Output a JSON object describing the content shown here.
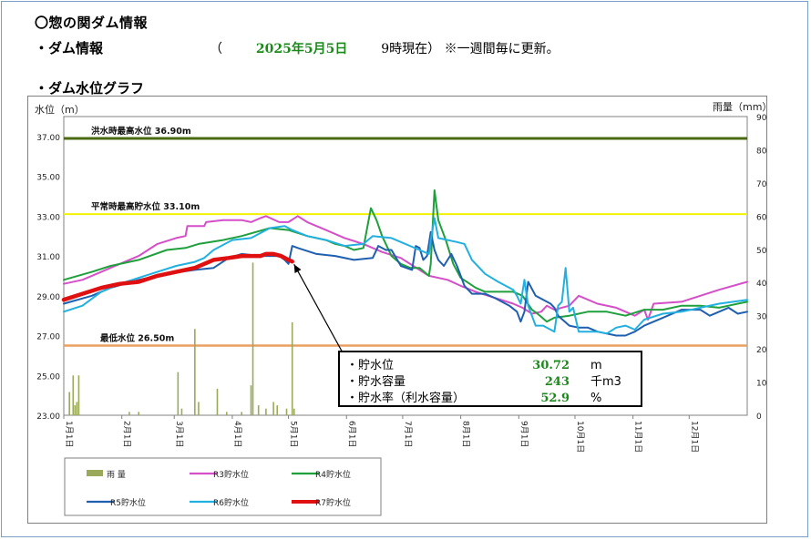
{
  "page": {
    "title": "〇惣の関ダム情報",
    "info_label": "・ダム情報",
    "date_open": "（",
    "date_value": "2025年5月5日",
    "date_time": "9時現在）",
    "date_note": "※一週間毎に更新。",
    "graph_label": "・ダム水位グラフ"
  },
  "info_box": {
    "rows": [
      {
        "label": "・貯水位",
        "value": "30.72",
        "unit": "m"
      },
      {
        "label": "・貯水容量",
        "value": "243",
        "unit": "千m3"
      },
      {
        "label": "・貯水率（利水容量）",
        "value": "52.9",
        "unit": "%"
      }
    ]
  },
  "colors": {
    "rain": "#9aaa5a",
    "R3": "#d44fc8",
    "R4": "#1fa03c",
    "R5": "#1f5fb0",
    "R6": "#21b0e0",
    "R7": "#e01010",
    "flood_line": "#4a6a10",
    "normal_line": "#f2f200",
    "min_line": "#e8a060"
  },
  "chart_data": {
    "type": "line",
    "title": "ダム水位グラフ",
    "ylabel": "水位（m）",
    "y2label": "雨量（mm）",
    "ylim": [
      23.0,
      38.0
    ],
    "y2lim": [
      0,
      90
    ],
    "yticks": [
      "23.00",
      "25.00",
      "27.00",
      "29.00",
      "31.00",
      "33.00",
      "35.00",
      "37.00"
    ],
    "y2ticks": [
      "0",
      "10",
      "20",
      "30",
      "40",
      "50",
      "60",
      "70",
      "80",
      "90"
    ],
    "xlim": [
      0,
      365
    ],
    "months": [
      {
        "label": "1月1日",
        "day": 0
      },
      {
        "label": "2月1日",
        "day": 31
      },
      {
        "label": "3月1日",
        "day": 59
      },
      {
        "label": "4月1日",
        "day": 90
      },
      {
        "label": "5月1日",
        "day": 120
      },
      {
        "label": "6月1日",
        "day": 151
      },
      {
        "label": "7月1日",
        "day": 181
      },
      {
        "label": "8月1日",
        "day": 212
      },
      {
        "label": "9月1日",
        "day": 243
      },
      {
        "label": "10月1日",
        "day": 273
      },
      {
        "label": "11月1日",
        "day": 304
      },
      {
        "label": "12月1日",
        "day": 334
      }
    ],
    "reference_lines": [
      {
        "name": "flood",
        "label": "洪水時最高水位 36.90m",
        "value": 36.9
      },
      {
        "name": "normal",
        "label": "平常時最高貯水位 33.10m",
        "value": 33.1
      },
      {
        "name": "min",
        "label": "最低水位 26.50m",
        "value": 26.5
      }
    ],
    "rain": {
      "name": "雨 量",
      "points": [
        [
          3,
          7
        ],
        [
          5,
          12
        ],
        [
          6,
          3
        ],
        [
          7,
          4
        ],
        [
          8,
          12
        ],
        [
          35,
          1
        ],
        [
          40,
          1
        ],
        [
          61,
          13
        ],
        [
          63,
          2
        ],
        [
          70,
          26
        ],
        [
          72,
          4
        ],
        [
          82,
          8
        ],
        [
          87,
          1
        ],
        [
          95,
          1
        ],
        [
          100,
          9
        ],
        [
          101,
          46
        ],
        [
          104,
          3
        ],
        [
          108,
          2
        ],
        [
          112,
          4
        ],
        [
          114,
          3
        ],
        [
          119,
          2
        ],
        [
          122,
          28
        ],
        [
          123,
          2
        ]
      ]
    },
    "series": [
      {
        "name": "R3貯水位",
        "key": "R3",
        "points": [
          [
            0,
            29.6
          ],
          [
            10,
            29.8
          ],
          [
            20,
            30.2
          ],
          [
            30,
            30.6
          ],
          [
            40,
            31.0
          ],
          [
            50,
            31.6
          ],
          [
            60,
            31.9
          ],
          [
            65,
            32.0
          ],
          [
            66,
            32.5
          ],
          [
            75,
            32.5
          ],
          [
            76,
            32.7
          ],
          [
            85,
            32.8
          ],
          [
            95,
            32.8
          ],
          [
            100,
            32.7
          ],
          [
            105,
            32.9
          ],
          [
            108,
            33.0
          ],
          [
            115,
            32.7
          ],
          [
            120,
            32.7
          ],
          [
            125,
            33.0
          ],
          [
            130,
            32.7
          ],
          [
            140,
            32.3
          ],
          [
            150,
            31.9
          ],
          [
            160,
            31.6
          ],
          [
            170,
            31.2
          ],
          [
            180,
            30.9
          ],
          [
            190,
            30.3
          ],
          [
            195,
            30.0
          ],
          [
            205,
            29.8
          ],
          [
            212,
            29.5
          ],
          [
            220,
            29.2
          ],
          [
            230,
            28.9
          ],
          [
            240,
            28.6
          ],
          [
            245,
            28.4
          ],
          [
            250,
            28.1
          ],
          [
            255,
            28.2
          ],
          [
            258,
            28.5
          ],
          [
            262,
            28.3
          ],
          [
            270,
            28.5
          ],
          [
            275,
            29.0
          ],
          [
            285,
            28.6
          ],
          [
            295,
            28.4
          ],
          [
            300,
            28.2
          ],
          [
            305,
            28.0
          ],
          [
            310,
            28.3
          ],
          [
            312,
            27.8
          ],
          [
            315,
            28.6
          ],
          [
            330,
            28.7
          ],
          [
            340,
            29.0
          ],
          [
            350,
            29.3
          ],
          [
            365,
            29.7
          ]
        ]
      },
      {
        "name": "R4貯水位",
        "key": "R4",
        "points": [
          [
            0,
            29.8
          ],
          [
            15,
            30.2
          ],
          [
            25,
            30.5
          ],
          [
            40,
            30.8
          ],
          [
            55,
            31.3
          ],
          [
            65,
            31.4
          ],
          [
            72,
            31.6
          ],
          [
            85,
            31.8
          ],
          [
            95,
            32.0
          ],
          [
            110,
            32.4
          ],
          [
            120,
            32.3
          ],
          [
            130,
            32.0
          ],
          [
            140,
            31.8
          ],
          [
            145,
            31.6
          ],
          [
            150,
            31.5
          ],
          [
            155,
            31.3
          ],
          [
            160,
            31.4
          ],
          [
            164,
            33.4
          ],
          [
            167,
            32.8
          ],
          [
            170,
            32.0
          ],
          [
            175,
            31.0
          ],
          [
            180,
            30.6
          ],
          [
            185,
            30.4
          ],
          [
            190,
            30.4
          ],
          [
            195,
            30.0
          ],
          [
            196,
            30.6
          ],
          [
            198,
            34.3
          ],
          [
            200,
            32.8
          ],
          [
            204,
            31.8
          ],
          [
            208,
            30.6
          ],
          [
            212,
            29.9
          ],
          [
            220,
            29.4
          ],
          [
            225,
            29.2
          ],
          [
            230,
            29.2
          ],
          [
            240,
            29.2
          ],
          [
            245,
            29.0
          ],
          [
            250,
            28.3
          ],
          [
            253,
            28.1
          ],
          [
            258,
            27.7
          ],
          [
            262,
            27.9
          ],
          [
            270,
            28.0
          ],
          [
            280,
            28.2
          ],
          [
            290,
            28.2
          ],
          [
            300,
            28.0
          ],
          [
            310,
            28.3
          ],
          [
            320,
            28.3
          ],
          [
            330,
            28.5
          ],
          [
            340,
            28.5
          ],
          [
            350,
            28.4
          ],
          [
            355,
            28.5
          ],
          [
            360,
            28.6
          ],
          [
            365,
            28.7
          ]
        ]
      },
      {
        "name": "R5貯水位",
        "key": "R5",
        "points": [
          [
            0,
            28.6
          ],
          [
            15,
            29.0
          ],
          [
            25,
            29.4
          ],
          [
            40,
            29.8
          ],
          [
            55,
            30.1
          ],
          [
            70,
            30.3
          ],
          [
            80,
            30.4
          ],
          [
            88,
            30.9
          ],
          [
            95,
            31.1
          ],
          [
            105,
            31.0
          ],
          [
            115,
            31.0
          ],
          [
            118,
            30.8
          ],
          [
            120,
            30.6
          ],
          [
            122,
            31.5
          ],
          [
            125,
            31.4
          ],
          [
            135,
            31.1
          ],
          [
            145,
            31.0
          ],
          [
            155,
            30.8
          ],
          [
            165,
            30.9
          ],
          [
            168,
            31.5
          ],
          [
            172,
            31.3
          ],
          [
            175,
            31.3
          ],
          [
            180,
            30.5
          ],
          [
            186,
            30.3
          ],
          [
            188,
            31.5
          ],
          [
            190,
            31.4
          ],
          [
            192,
            30.8
          ],
          [
            194,
            31.0
          ],
          [
            196,
            32.2
          ],
          [
            198,
            31.3
          ],
          [
            200,
            30.8
          ],
          [
            203,
            30.5
          ],
          [
            207,
            31.1
          ],
          [
            210,
            30.5
          ],
          [
            214,
            29.5
          ],
          [
            218,
            29.1
          ],
          [
            225,
            29.1
          ],
          [
            230,
            28.9
          ],
          [
            238,
            28.5
          ],
          [
            242,
            28.2
          ],
          [
            244,
            27.7
          ],
          [
            246,
            28.2
          ],
          [
            248,
            29.7
          ],
          [
            252,
            29.0
          ],
          [
            260,
            28.6
          ],
          [
            262,
            28.4
          ],
          [
            264,
            28.0
          ],
          [
            270,
            27.5
          ],
          [
            275,
            27.4
          ],
          [
            280,
            27.4
          ],
          [
            285,
            27.2
          ],
          [
            290,
            27.1
          ],
          [
            295,
            27.0
          ],
          [
            300,
            27.0
          ],
          [
            305,
            27.2
          ],
          [
            310,
            27.5
          ],
          [
            320,
            27.9
          ],
          [
            330,
            28.3
          ],
          [
            340,
            28.3
          ],
          [
            345,
            28.0
          ],
          [
            350,
            28.2
          ],
          [
            355,
            28.4
          ],
          [
            360,
            28.1
          ],
          [
            365,
            28.2
          ]
        ]
      },
      {
        "name": "R6貯水位",
        "key": "R6",
        "points": [
          [
            0,
            28.2
          ],
          [
            10,
            28.5
          ],
          [
            20,
            29.2
          ],
          [
            30,
            29.6
          ],
          [
            40,
            29.9
          ],
          [
            50,
            30.2
          ],
          [
            60,
            30.5
          ],
          [
            70,
            30.7
          ],
          [
            75,
            30.9
          ],
          [
            80,
            31.3
          ],
          [
            90,
            31.8
          ],
          [
            100,
            31.9
          ],
          [
            110,
            32.4
          ],
          [
            118,
            32.5
          ],
          [
            122,
            32.3
          ],
          [
            130,
            32.0
          ],
          [
            140,
            31.8
          ],
          [
            150,
            31.5
          ],
          [
            160,
            31.6
          ],
          [
            165,
            32.0
          ],
          [
            175,
            31.9
          ],
          [
            180,
            31.7
          ],
          [
            190,
            31.3
          ],
          [
            195,
            31.1
          ],
          [
            196,
            31.8
          ],
          [
            198,
            32.9
          ],
          [
            200,
            31.9
          ],
          [
            210,
            31.7
          ],
          [
            214,
            31.6
          ],
          [
            218,
            30.8
          ],
          [
            225,
            30.1
          ],
          [
            232,
            29.7
          ],
          [
            240,
            29.3
          ],
          [
            242,
            29.0
          ],
          [
            244,
            28.6
          ],
          [
            246,
            29.8
          ],
          [
            248,
            28.5
          ],
          [
            250,
            28.0
          ],
          [
            252,
            27.5
          ],
          [
            256,
            27.5
          ],
          [
            260,
            27.3
          ],
          [
            262,
            27.2
          ],
          [
            264,
            28.5
          ],
          [
            266,
            28.7
          ],
          [
            268,
            30.4
          ],
          [
            270,
            28.2
          ],
          [
            272,
            28.4
          ],
          [
            275,
            27.2
          ],
          [
            280,
            27.2
          ],
          [
            285,
            27.2
          ],
          [
            290,
            27.1
          ],
          [
            295,
            27.4
          ],
          [
            300,
            27.5
          ],
          [
            305,
            27.3
          ],
          [
            310,
            27.8
          ],
          [
            320,
            28.1
          ],
          [
            330,
            28.2
          ],
          [
            340,
            28.4
          ],
          [
            350,
            28.6
          ],
          [
            365,
            28.8
          ]
        ]
      },
      {
        "name": "R7貯水位",
        "key": "R7",
        "points": [
          [
            0,
            28.8
          ],
          [
            10,
            29.1
          ],
          [
            20,
            29.4
          ],
          [
            30,
            29.6
          ],
          [
            40,
            29.7
          ],
          [
            50,
            30.0
          ],
          [
            60,
            30.2
          ],
          [
            70,
            30.4
          ],
          [
            75,
            30.6
          ],
          [
            80,
            30.8
          ],
          [
            88,
            30.9
          ],
          [
            95,
            31.0
          ],
          [
            100,
            31.0
          ],
          [
            105,
            31.0
          ],
          [
            108,
            31.1
          ],
          [
            112,
            31.1
          ],
          [
            116,
            31.0
          ],
          [
            120,
            30.8
          ],
          [
            122,
            30.72
          ]
        ]
      }
    ]
  }
}
